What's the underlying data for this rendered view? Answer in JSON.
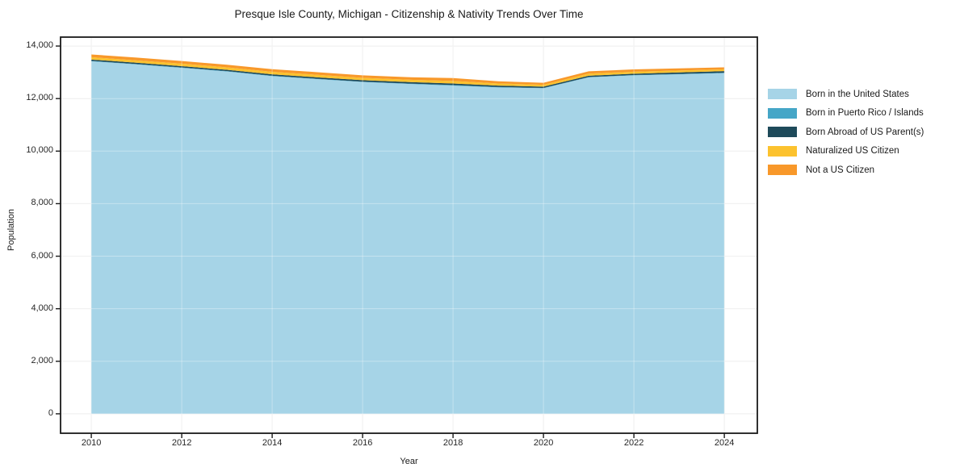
{
  "title": "Presque Isle County, Michigan - Citizenship & Nativity Trends Over Time",
  "xlabel": "Year",
  "ylabel": "Population",
  "frame_color": "#1a1a1a",
  "grid_color": "#e8e8e8",
  "chart_data": {
    "type": "area",
    "stacked": true,
    "title": "Presque Isle County, Michigan - Citizenship & Nativity Trends Over Time",
    "xlabel": "Year",
    "ylabel": "Population",
    "grid": true,
    "legend_position": "right",
    "xlim": [
      2009.32,
      2024.73
    ],
    "ylim": [
      -740,
      14340
    ],
    "x_ticks": [
      2010,
      2012,
      2014,
      2016,
      2018,
      2020,
      2022,
      2024
    ],
    "y_ticks": [
      0,
      2000,
      4000,
      6000,
      8000,
      10000,
      12000,
      14000
    ],
    "y_tick_labels": [
      "0",
      "2,000",
      "4,000",
      "6,000",
      "8,000",
      "10,000",
      "12,000",
      "14,000"
    ],
    "x": [
      2010,
      2011,
      2012,
      2013,
      2014,
      2015,
      2016,
      2017,
      2018,
      2019,
      2020,
      2021,
      2022,
      2023,
      2024
    ],
    "series": [
      {
        "name": "Born in the United States",
        "color": "#a6d4e7",
        "values": [
          13420,
          13300,
          13170,
          13030,
          12855,
          12740,
          12630,
          12560,
          12495,
          12425,
          12395,
          12810,
          12885,
          12925,
          12965
        ]
      },
      {
        "name": "Born in Puerto Rico / Islands",
        "color": "#45a6c7",
        "values": [
          15,
          15,
          15,
          15,
          15,
          15,
          15,
          15,
          20,
          15,
          10,
          10,
          10,
          15,
          20
        ]
      },
      {
        "name": "Born Abroad of US Parent(s)",
        "color": "#1e4a5a",
        "values": [
          50,
          50,
          50,
          50,
          55,
          55,
          55,
          55,
          60,
          55,
          50,
          50,
          50,
          55,
          60
        ]
      },
      {
        "name": "Naturalized US Citizen",
        "color": "#fcc22e",
        "values": [
          90,
          90,
          95,
          95,
          95,
          95,
          90,
          90,
          95,
          80,
          70,
          80,
          80,
          75,
          70
        ]
      },
      {
        "name": "Not a US Citizen",
        "color": "#f8982a",
        "values": [
          105,
          105,
          100,
          100,
          100,
          100,
          95,
          95,
          110,
          85,
          75,
          90,
          85,
          80,
          75
        ]
      }
    ]
  }
}
